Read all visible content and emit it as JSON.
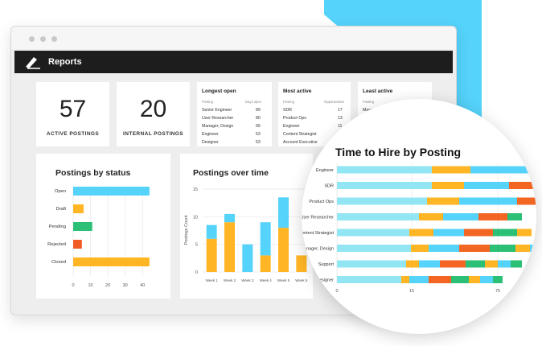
{
  "colors": {
    "cyan": "#55d3fb",
    "light_cyan": "#92e6f4",
    "orange": "#ffb524",
    "dark_orange": "#f26522",
    "green": "#2cbf76",
    "red": "#f05a24",
    "dark": "#1d1d1d"
  },
  "app": {
    "title": "Reports"
  },
  "stats": [
    {
      "value": "57",
      "label": "ACTIVE POSTINGS"
    },
    {
      "value": "20",
      "label": "INTERNAL POSTINGS"
    }
  ],
  "longest_open": {
    "title": "Longest open",
    "col1": "Posting",
    "col2": "Days open",
    "rows": [
      {
        "name": "Senior Engineer",
        "value": "89"
      },
      {
        "name": "User Researcher",
        "value": "80"
      },
      {
        "name": "Manager, Design",
        "value": "65"
      },
      {
        "name": "Engineer",
        "value": "53"
      },
      {
        "name": "Designer",
        "value": "53"
      }
    ]
  },
  "most_active": {
    "title": "Most active",
    "col1": "Posting",
    "col2": "Opportunities",
    "rows": [
      {
        "name": "SDR",
        "value": "17"
      },
      {
        "name": "Product Ops",
        "value": "13"
      },
      {
        "name": "Engineer",
        "value": "11"
      },
      {
        "name": "Content Strategist",
        "value": ""
      },
      {
        "name": "Account Executive",
        "value": ""
      }
    ]
  },
  "least_active": {
    "title": "Least active",
    "col1": "Posting",
    "col2": "Opportunities",
    "rows": [
      {
        "name": "Manag"
      }
    ]
  },
  "chart_data": [
    {
      "type": "bar",
      "title": "Postings by status",
      "categories": [
        "Open",
        "Draft",
        "Pending",
        "Rejected",
        "Closed"
      ],
      "values": [
        44,
        6,
        11,
        5,
        44
      ],
      "colors": [
        "#55d3fb",
        "#ffb524",
        "#2cbf76",
        "#f05a24",
        "#ffb524"
      ],
      "xlim": [
        0,
        45
      ],
      "xticks": [
        "0",
        "10",
        "20",
        "30",
        "40"
      ],
      "grid": true
    },
    {
      "type": "bar",
      "stacked": true,
      "title": "Postings over time",
      "ylabel": "Postings Count",
      "categories": [
        "Week 1",
        "Week 2",
        "Week 3",
        "Week 4",
        "Week 5",
        "Week 6"
      ],
      "series": [
        {
          "values": [
            6,
            9,
            0,
            3,
            8,
            3
          ],
          "color": "#ffb524"
        },
        {
          "values": [
            2.5,
            1.5,
            5,
            6,
            5.5,
            0
          ],
          "color": "#55d3fb"
        }
      ],
      "ylim": [
        0,
        15
      ],
      "yticks": [
        "0",
        "5",
        "10",
        "15"
      ],
      "grid": true
    },
    {
      "type": "bar",
      "stacked": true,
      "orientation": "horizontal",
      "title": "Time to Hire by Posting",
      "categories": [
        "Engineer",
        "SDR",
        "Product Ops",
        "User Researcher",
        "Content Strategist",
        "Manager, Design",
        "Support",
        "Designer"
      ],
      "xticks": [
        "0",
        "15",
        "75"
      ]
    }
  ]
}
